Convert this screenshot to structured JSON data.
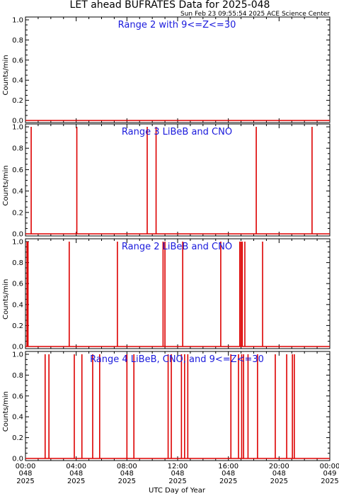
{
  "chart_data": {
    "type": "line",
    "title": "LET ahead BUFRATES Data for 2025-048",
    "timestamp": "Sun Feb 23 09:55:54 2025 ACE Science Center",
    "xlabel": "UTC Day of Year",
    "ylabel": "Counts/min",
    "xlim": [
      0,
      24
    ],
    "ylim": [
      0,
      1.0
    ],
    "yticks": [
      "0.0",
      "0.2",
      "0.4",
      "0.6",
      "0.8",
      "1.0"
    ],
    "xticks": [
      {
        "time": "00:00",
        "day": "048",
        "year": "2025"
      },
      {
        "time": "04:00",
        "day": "048",
        "year": "2025"
      },
      {
        "time": "08:00",
        "day": "048",
        "year": "2025"
      },
      {
        "time": "12:00",
        "day": "048",
        "year": "2025"
      },
      {
        "time": "16:00",
        "day": "048",
        "year": "2025"
      },
      {
        "time": "20:00",
        "day": "048",
        "year": "2025"
      },
      {
        "time": "00:00",
        "day": "049",
        "year": "2025"
      }
    ],
    "line_color": "#dd0000",
    "label_color": "#1a1adc",
    "panels": [
      {
        "label": "Range 2 with 9<=Z<=30",
        "spikes": []
      },
      {
        "label": "Range 3 LiBeB and CNO",
        "spikes": [
          0.45,
          4.05,
          9.6,
          10.3,
          18.2,
          22.6
        ]
      },
      {
        "label": "Range 2 LiBeB and CNO",
        "spikes": [
          0.12,
          0.2,
          3.45,
          7.25,
          10.85,
          11.0,
          12.4,
          15.4,
          16.9,
          17.0,
          17.1,
          17.3,
          18.7
        ]
      },
      {
        "label": "Range 4 LiBeB, CNO, and 9<=Z<=30",
        "spikes": [
          1.55,
          1.85,
          3.85,
          4.45,
          5.3,
          5.85,
          8.0,
          8.55,
          11.25,
          11.5,
          12.3,
          12.55,
          12.8,
          16.2,
          16.8,
          17.05,
          17.2,
          17.55,
          18.3,
          19.7,
          20.6,
          21.05,
          21.2
        ]
      }
    ]
  }
}
